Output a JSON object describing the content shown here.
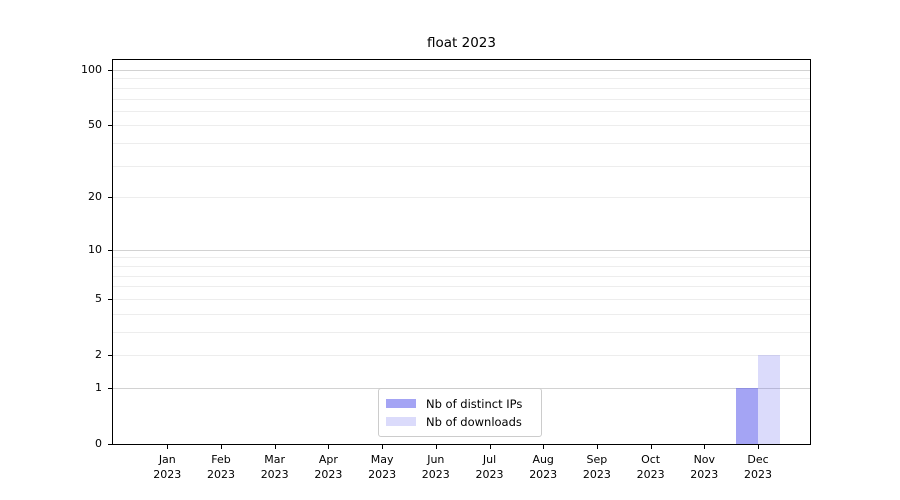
{
  "chart_data": {
    "type": "bar",
    "title": "float 2023",
    "categories": [
      "Jan 2023",
      "Feb 2023",
      "Mar 2023",
      "Apr 2023",
      "May 2023",
      "Jun 2023",
      "Jul 2023",
      "Aug 2023",
      "Sep 2023",
      "Oct 2023",
      "Nov 2023",
      "Dec 2023"
    ],
    "series": [
      {
        "name": "Nb of distinct IPs",
        "color": "rgba(90,90,235,0.55)",
        "values": [
          0,
          0,
          0,
          0,
          0,
          0,
          0,
          0,
          0,
          0,
          0,
          1
        ]
      },
      {
        "name": "Nb of downloads",
        "color": "rgba(90,90,235,0.22)",
        "values": [
          0,
          0,
          0,
          0,
          0,
          0,
          0,
          0,
          0,
          0,
          0,
          2
        ]
      }
    ],
    "xlabel": "",
    "ylabel": "",
    "yscale": "log1p",
    "ylim": [
      0,
      113
    ],
    "ytick_labels": [
      0,
      1,
      2,
      5,
      10,
      20,
      50,
      100
    ],
    "major_gridlines": [
      1,
      10,
      100
    ],
    "minor_gridlines": [
      2,
      3,
      4,
      5,
      6,
      7,
      8,
      9,
      20,
      30,
      40,
      50,
      60,
      70,
      80,
      90
    ],
    "grid": true,
    "legend_position": "lower center"
  },
  "legend": {
    "items": [
      {
        "label": "Nb of distinct IPs"
      },
      {
        "label": "Nb of downloads"
      }
    ]
  }
}
